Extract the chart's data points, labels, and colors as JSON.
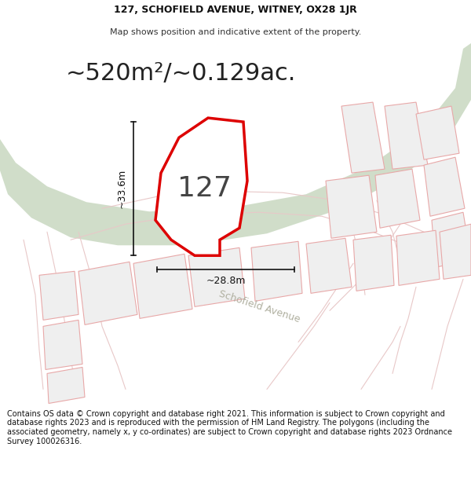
{
  "title_line1": "127, SCHOFIELD AVENUE, WITNEY, OX28 1JR",
  "title_line2": "Map shows position and indicative extent of the property.",
  "area_text": "~520m²/~0.129ac.",
  "plot_number": "127",
  "dim_height": "~33.6m",
  "dim_width": "~28.8m",
  "street_name": "Schofield Avenue",
  "footer_text": "Contains OS data © Crown copyright and database right 2021. This information is subject to Crown copyright and database rights 2023 and is reproduced with the permission of HM Land Registry. The polygons (including the associated geometry, namely x, y co-ordinates) are subject to Crown copyright and database rights 2023 Ordnance Survey 100026316.",
  "bg_color": "#ffffff",
  "map_bg_color": "#f8f8f8",
  "plot_fill": "#ffffff",
  "plot_edge_color": "#dd0000",
  "neighbor_fill": "#efefef",
  "neighbor_edge": "#e8a8a8",
  "road_green_fill": "#c8d8c0",
  "road_line_color": "#e8c8c8",
  "arrow_color": "#111111",
  "street_color": "#b0b0a0",
  "title_fontsize": 9,
  "subtitle_fontsize": 8,
  "area_fontsize": 22,
  "plot_label_fontsize": 26,
  "footer_fontsize": 7,
  "dim_fontsize": 9
}
